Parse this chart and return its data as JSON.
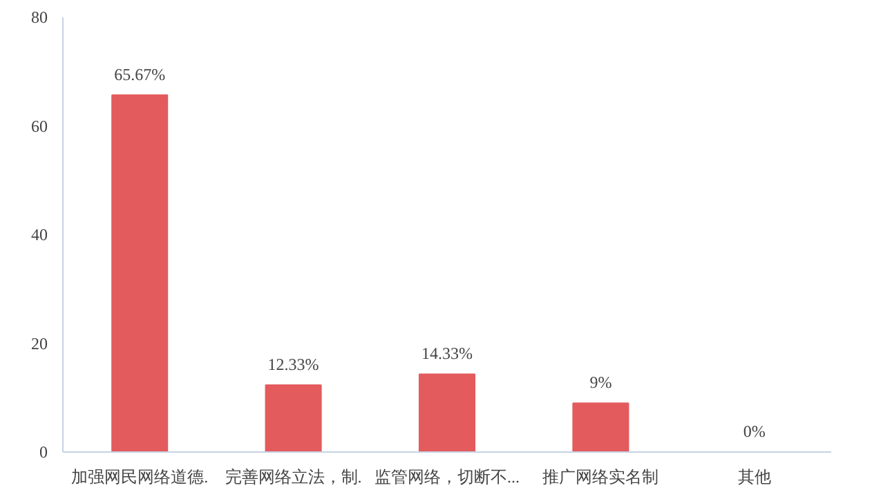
{
  "chart_data": {
    "type": "bar",
    "categories": [
      "加强网民网络道德.",
      "完善网络立法，制.",
      "监管网络，切断不...",
      "推广网络实名制",
      "其他"
    ],
    "values": [
      65.67,
      12.33,
      14.33,
      9,
      0
    ],
    "value_labels": [
      "65.67%",
      "12.33%",
      "14.33%",
      "9%",
      "0%"
    ],
    "color": "#e35b5d",
    "ylim": [
      0,
      80
    ],
    "yticks": [
      0,
      20,
      40,
      60,
      80
    ],
    "grid": false
  }
}
